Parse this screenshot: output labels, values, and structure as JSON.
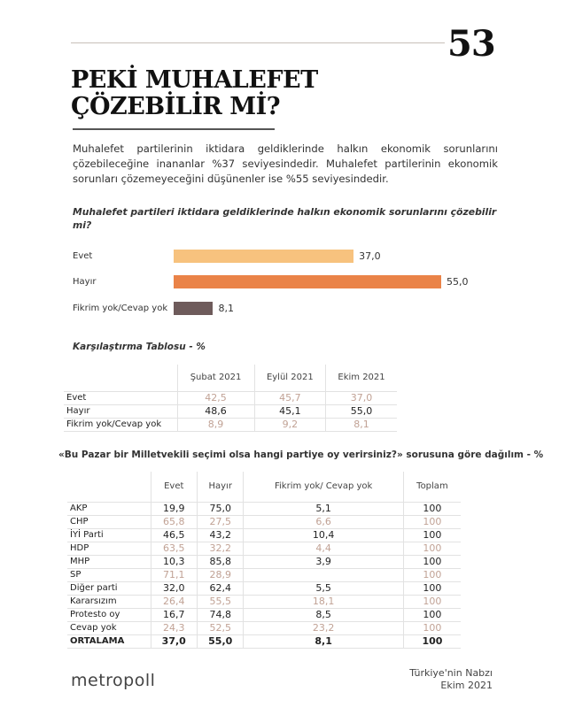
{
  "page_number": "53",
  "title_line1": "PEKİ MUHALEFET",
  "title_line2": "ÇÖZEBİLİR Mİ?",
  "paragraph": "Muhalefet partilerinin iktidara geldiklerinde halkın ekonomik sorunlarını çözebileceğine inananlar %37 seviyesindedir. Muhalefet partilerinin ekonomik sorunları çözemeyeceğini düşünenler ise %55 seviyesindedir.",
  "chart_data": {
    "type": "bar",
    "title": "Muhalefet partileri iktidara geldiklerinde halkın ekonomik sorunlarını çözebilir mi?",
    "orientation": "horizontal",
    "categories": [
      "Evet",
      "Hayır",
      "Fikrim yok/Cevap yok"
    ],
    "values": [
      37.0,
      55.0,
      8.1
    ],
    "value_labels": [
      "37,0",
      "55,0",
      "8,1"
    ],
    "colors": [
      "#f7c27e",
      "#ea8348",
      "#6e5b5b"
    ]
  },
  "table1": {
    "title": "Karşılaştırma Tablosu - %",
    "headers": [
      "Şubat 2021",
      "Eylül 2021",
      "Ekim 2021"
    ],
    "rows": [
      {
        "label": "Evet",
        "values": [
          "42,5",
          "45,7",
          "37,0"
        ],
        "muted": true
      },
      {
        "label": "Hayır",
        "values": [
          "48,6",
          "45,1",
          "55,0"
        ],
        "muted": false
      },
      {
        "label": "Fikrim yok/Cevap yok",
        "values": [
          "8,9",
          "9,2",
          "8,1"
        ],
        "muted": true
      }
    ]
  },
  "table2": {
    "title": "«Bu Pazar bir Milletvekili seçimi olsa hangi partiye oy verirsiniz?» sorusuna göre dağılım - %",
    "headers": [
      "Evet",
      "Hayır",
      "Fikrim yok/ Cevap yok",
      "Toplam"
    ],
    "rows": [
      {
        "label": "AKP",
        "values": [
          "19,9",
          "75,0",
          "5,1",
          "100"
        ],
        "muted": false
      },
      {
        "label": "CHP",
        "values": [
          "65,8",
          "27,5",
          "6,6",
          "100"
        ],
        "muted": true
      },
      {
        "label": "İYİ Parti",
        "values": [
          "46,5",
          "43,2",
          "10,4",
          "100"
        ],
        "muted": false
      },
      {
        "label": "HDP",
        "values": [
          "63,5",
          "32,2",
          "4,4",
          "100"
        ],
        "muted": true
      },
      {
        "label": "MHP",
        "values": [
          "10,3",
          "85,8",
          "3,9",
          "100"
        ],
        "muted": false
      },
      {
        "label": "SP",
        "values": [
          "71,1",
          "28,9",
          "",
          "100"
        ],
        "muted": true
      },
      {
        "label": "Diğer parti",
        "values": [
          "32,0",
          "62,4",
          "5,5",
          "100"
        ],
        "muted": false
      },
      {
        "label": "Kararsızım",
        "values": [
          "26,4",
          "55,5",
          "18,1",
          "100"
        ],
        "muted": true
      },
      {
        "label": "Protesto oy",
        "values": [
          "16,7",
          "74,8",
          "8,5",
          "100"
        ],
        "muted": false
      },
      {
        "label": "Cevap yok",
        "values": [
          "24,3",
          "52,5",
          "23,2",
          "100"
        ],
        "muted": true
      },
      {
        "label": "ORTALAMA",
        "values": [
          "37,0",
          "55,0",
          "8,1",
          "100"
        ],
        "muted": false,
        "bold": true
      }
    ]
  },
  "logo": "metropoll",
  "footer_line1": "Türkiye'nin Nabzı",
  "footer_line2": "Ekim 2021"
}
